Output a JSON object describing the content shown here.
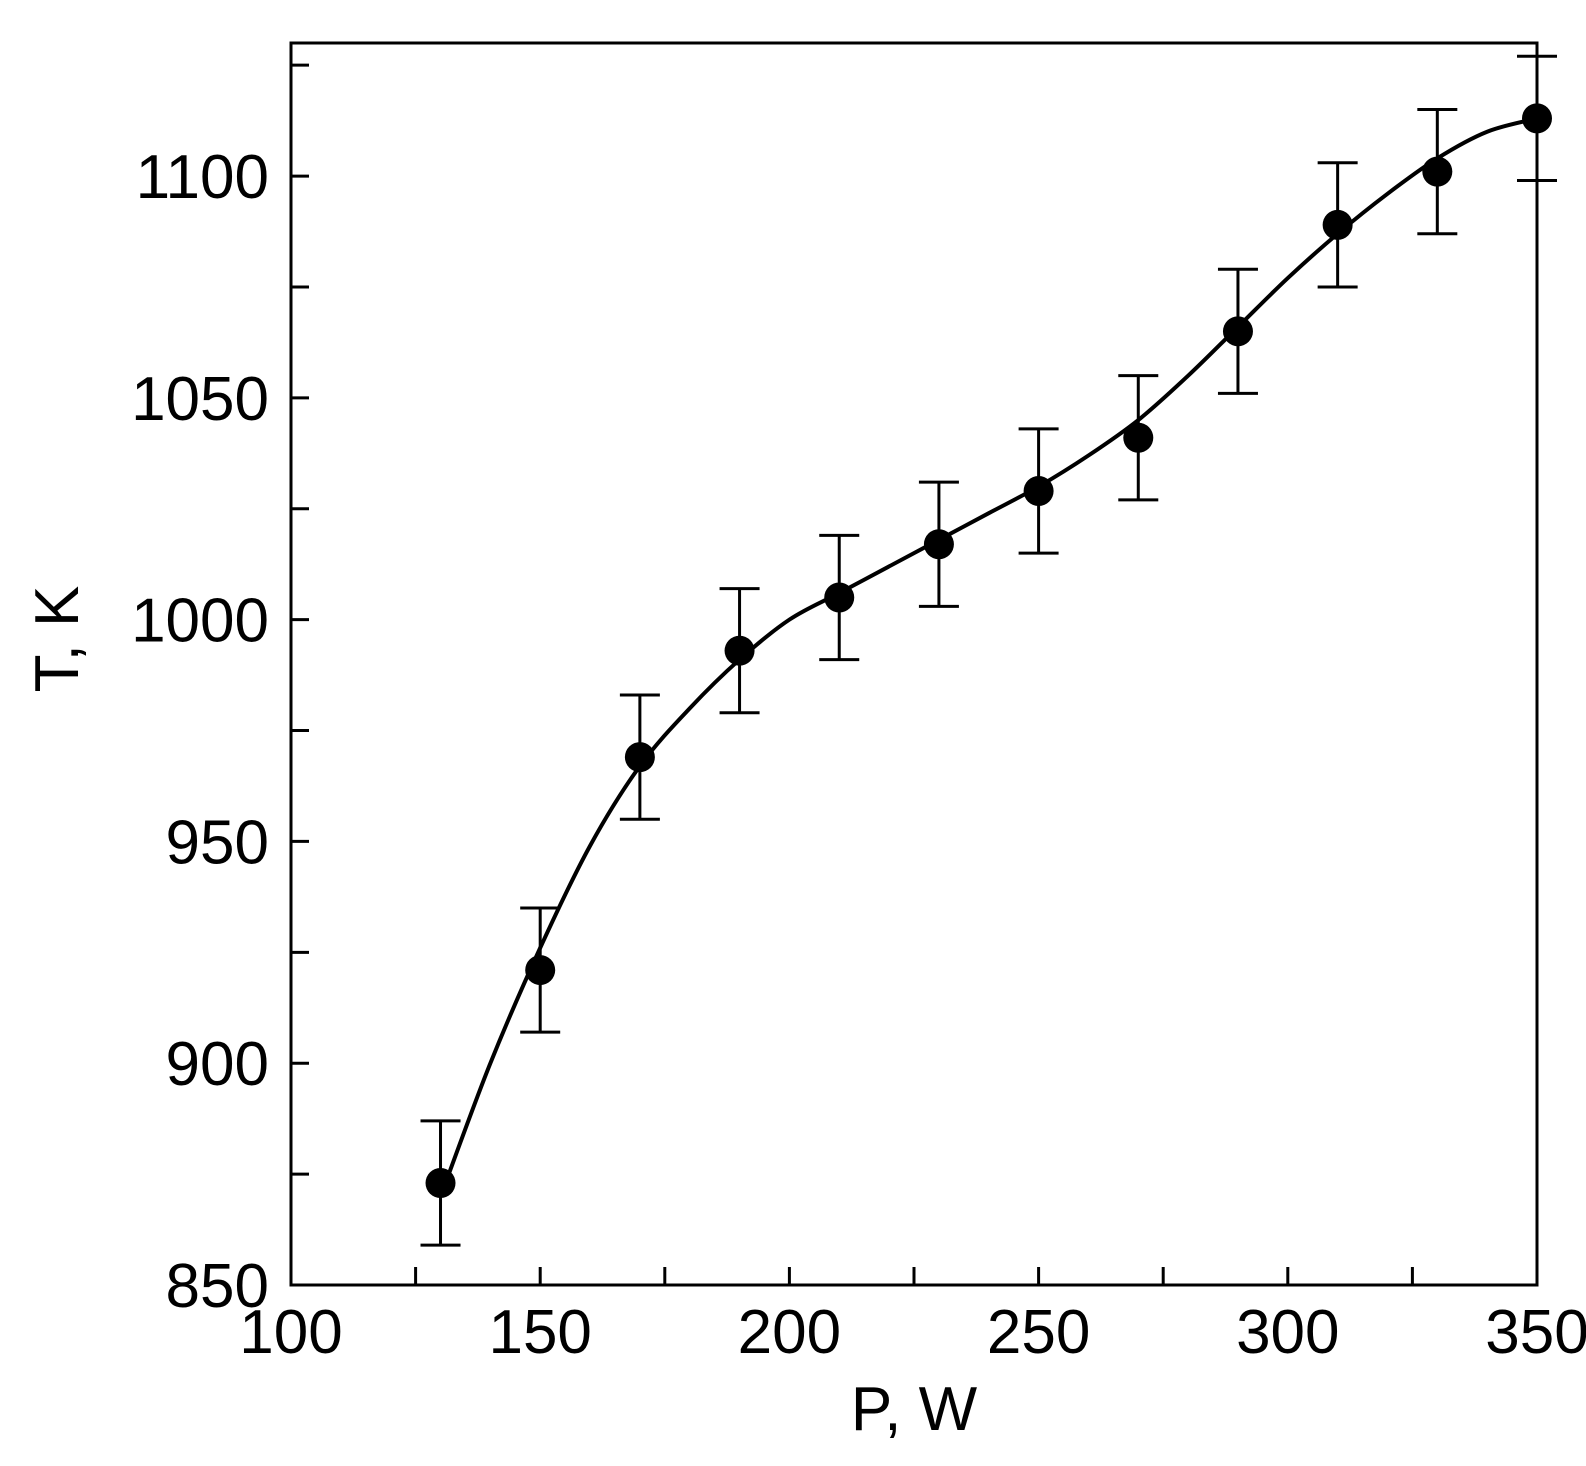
{
  "chart_data": {
    "type": "scatter",
    "xlabel": "P, W",
    "ylabel": "T, K",
    "xlim": [
      100,
      350
    ],
    "ylim": [
      850,
      1130
    ],
    "x_ticks_major": [
      100,
      150,
      200,
      250,
      300,
      350
    ],
    "x_ticks_minor": [
      125,
      175,
      225,
      275,
      325
    ],
    "y_ticks_major": [
      850,
      900,
      950,
      1000,
      1050,
      1100
    ],
    "y_ticks_minor": [
      875,
      925,
      975,
      1025,
      1075,
      1125
    ],
    "x_tick_labels": [
      "100",
      "150",
      "200",
      "250",
      "300",
      "350"
    ],
    "y_tick_labels": [
      "850",
      "900",
      "950",
      "1000",
      "1050",
      "1100"
    ],
    "grid": false,
    "series": [
      {
        "marker": "filled-circle",
        "color": "#000000",
        "error_bar": 14,
        "points": [
          {
            "x": 130,
            "y": 873
          },
          {
            "x": 150,
            "y": 921
          },
          {
            "x": 170,
            "y": 969
          },
          {
            "x": 190,
            "y": 993
          },
          {
            "x": 210,
            "y": 1005
          },
          {
            "x": 230,
            "y": 1017
          },
          {
            "x": 250,
            "y": 1029
          },
          {
            "x": 270,
            "y": 1041
          },
          {
            "x": 290,
            "y": 1065
          },
          {
            "x": 310,
            "y": 1089
          },
          {
            "x": 330,
            "y": 1101
          },
          {
            "x": 350,
            "y": 1113
          }
        ]
      }
    ],
    "fit_curve": {
      "color": "#000000",
      "points": [
        {
          "x": 131,
          "y": 873
        },
        {
          "x": 140,
          "y": 900
        },
        {
          "x": 150,
          "y": 926
        },
        {
          "x": 160,
          "y": 949
        },
        {
          "x": 170,
          "y": 967
        },
        {
          "x": 180,
          "y": 980
        },
        {
          "x": 190,
          "y": 991
        },
        {
          "x": 200,
          "y": 1000
        },
        {
          "x": 210,
          "y": 1006
        },
        {
          "x": 220,
          "y": 1012
        },
        {
          "x": 230,
          "y": 1018
        },
        {
          "x": 240,
          "y": 1024
        },
        {
          "x": 250,
          "y": 1030
        },
        {
          "x": 260,
          "y": 1037
        },
        {
          "x": 270,
          "y": 1045
        },
        {
          "x": 280,
          "y": 1055
        },
        {
          "x": 290,
          "y": 1066
        },
        {
          "x": 300,
          "y": 1077
        },
        {
          "x": 310,
          "y": 1087
        },
        {
          "x": 320,
          "y": 1096
        },
        {
          "x": 330,
          "y": 1104
        },
        {
          "x": 340,
          "y": 1110
        },
        {
          "x": 350,
          "y": 1113
        }
      ]
    }
  }
}
